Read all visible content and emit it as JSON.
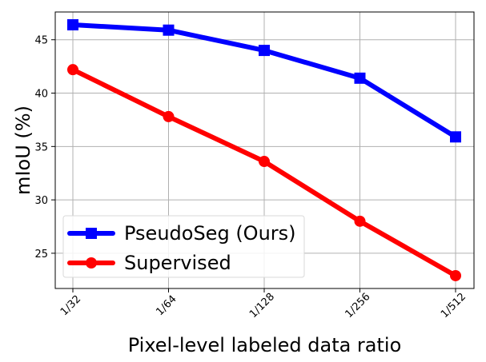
{
  "chart_data": {
    "type": "line",
    "x": [
      32,
      64,
      128,
      256,
      512
    ],
    "categories": [
      "1/32",
      "1/64",
      "1/128",
      "1/256",
      "1/512"
    ],
    "series": [
      {
        "name": "PseudoSeg (Ours)",
        "values": [
          46.4,
          45.9,
          44.0,
          41.4,
          35.9
        ],
        "color": "#0000ff",
        "marker": "square"
      },
      {
        "name": "Supervised",
        "values": [
          42.2,
          37.8,
          33.6,
          28.0,
          22.9
        ],
        "color": "#ff0000",
        "marker": "circle"
      }
    ],
    "xlabel": "Pixel-level labeled data ratio",
    "ylabel": "mIoU (%)",
    "xlim": [
      1,
      5
    ],
    "ylim": [
      21.7,
      47.6
    ],
    "yticks": [
      25,
      30,
      35,
      40,
      45
    ],
    "grid": true,
    "legend": "lower-left"
  }
}
